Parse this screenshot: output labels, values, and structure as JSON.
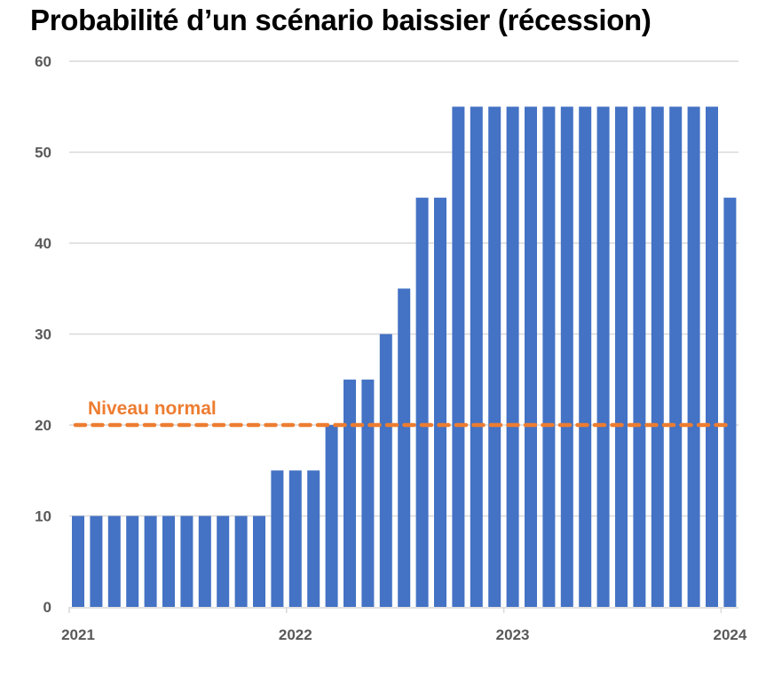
{
  "chart_data": {
    "type": "bar",
    "title": "Probabilité d’un scénario baissier (récession)",
    "xlabel": "",
    "ylabel": "",
    "ylim": [
      0,
      60
    ],
    "yticks": [
      0,
      10,
      20,
      30,
      40,
      50,
      60
    ],
    "xtick_labels": [
      "2021",
      "2022",
      "2023",
      "2024"
    ],
    "grid": true,
    "bar_color": "#4472C4",
    "values": [
      10,
      10,
      10,
      10,
      10,
      10,
      10,
      10,
      10,
      10,
      10,
      15,
      15,
      15,
      20,
      25,
      25,
      30,
      35,
      45,
      45,
      55,
      55,
      55,
      55,
      55,
      55,
      55,
      55,
      55,
      55,
      55,
      55,
      55,
      55,
      55,
      45
    ],
    "reference_line": {
      "label": "Niveau normal",
      "value": 20,
      "color": "#ED7D31",
      "style": "dashed"
    }
  }
}
